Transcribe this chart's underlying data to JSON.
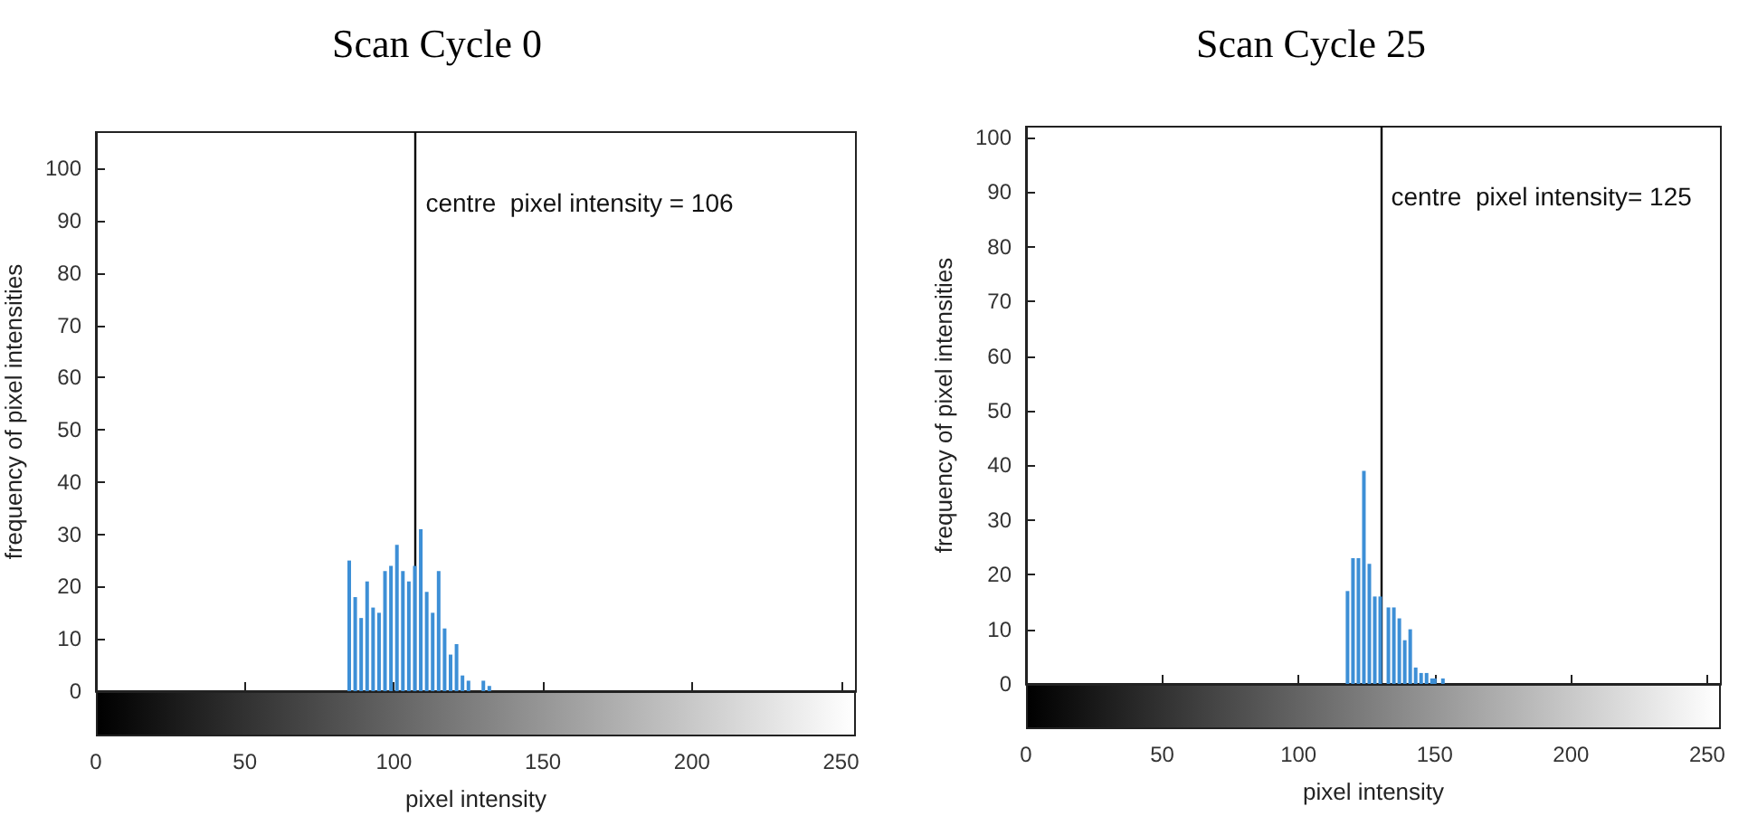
{
  "chart_data": [
    {
      "type": "bar",
      "title": "Scan Cycle 0",
      "xlabel": "pixel intensity",
      "ylabel": "frequency of pixel intensities",
      "x": [
        85,
        87,
        89,
        91,
        93,
        95,
        97,
        99,
        101,
        103,
        105,
        107,
        109,
        111,
        113,
        115,
        117,
        119,
        121,
        123,
        125,
        130,
        132
      ],
      "series": [
        {
          "color": "#3d8fd6",
          "values": [
            25,
            18,
            14,
            21,
            16,
            15,
            23,
            24,
            28,
            23,
            21,
            24,
            31,
            19,
            15,
            23,
            12,
            7,
            9,
            3,
            2,
            2,
            1
          ]
        }
      ],
      "xlim": [
        0,
        255
      ],
      "xticks": [
        0,
        50,
        100,
        150,
        200,
        250
      ],
      "ylim": [
        0,
        107
      ],
      "yticks": [
        0,
        10,
        20,
        30,
        40,
        50,
        60,
        70,
        80,
        90,
        100
      ],
      "ref_lines": [
        {
          "axis": "x",
          "value": 107,
          "color": "#000000"
        }
      ],
      "annotations": [
        "centre  pixel intensity = 106"
      ]
    },
    {
      "type": "bar",
      "title": "Scan Cycle 25",
      "xlabel": "pixel intensity",
      "ylabel": "frequency of pixel intensities",
      "x": [
        118,
        120,
        122,
        124,
        126,
        128,
        130,
        133,
        135,
        137,
        139,
        141,
        143,
        145,
        147,
        149,
        150,
        153
      ],
      "series": [
        {
          "color": "#3d8fd6",
          "values": [
            17,
            23,
            23,
            39,
            22,
            16,
            16,
            14,
            14,
            12,
            8,
            10,
            3,
            2,
            2,
            1,
            1,
            1
          ]
        }
      ],
      "xlim": [
        0,
        255
      ],
      "xticks": [
        0,
        50,
        100,
        150,
        200,
        250
      ],
      "ylim": [
        0,
        102
      ],
      "yticks": [
        0,
        10,
        20,
        30,
        40,
        50,
        60,
        70,
        80,
        90,
        100
      ],
      "ref_lines": [
        {
          "axis": "x",
          "value": 130,
          "color": "#000000"
        }
      ],
      "annotations": [
        "centre  pixel intensity= 125"
      ]
    }
  ]
}
